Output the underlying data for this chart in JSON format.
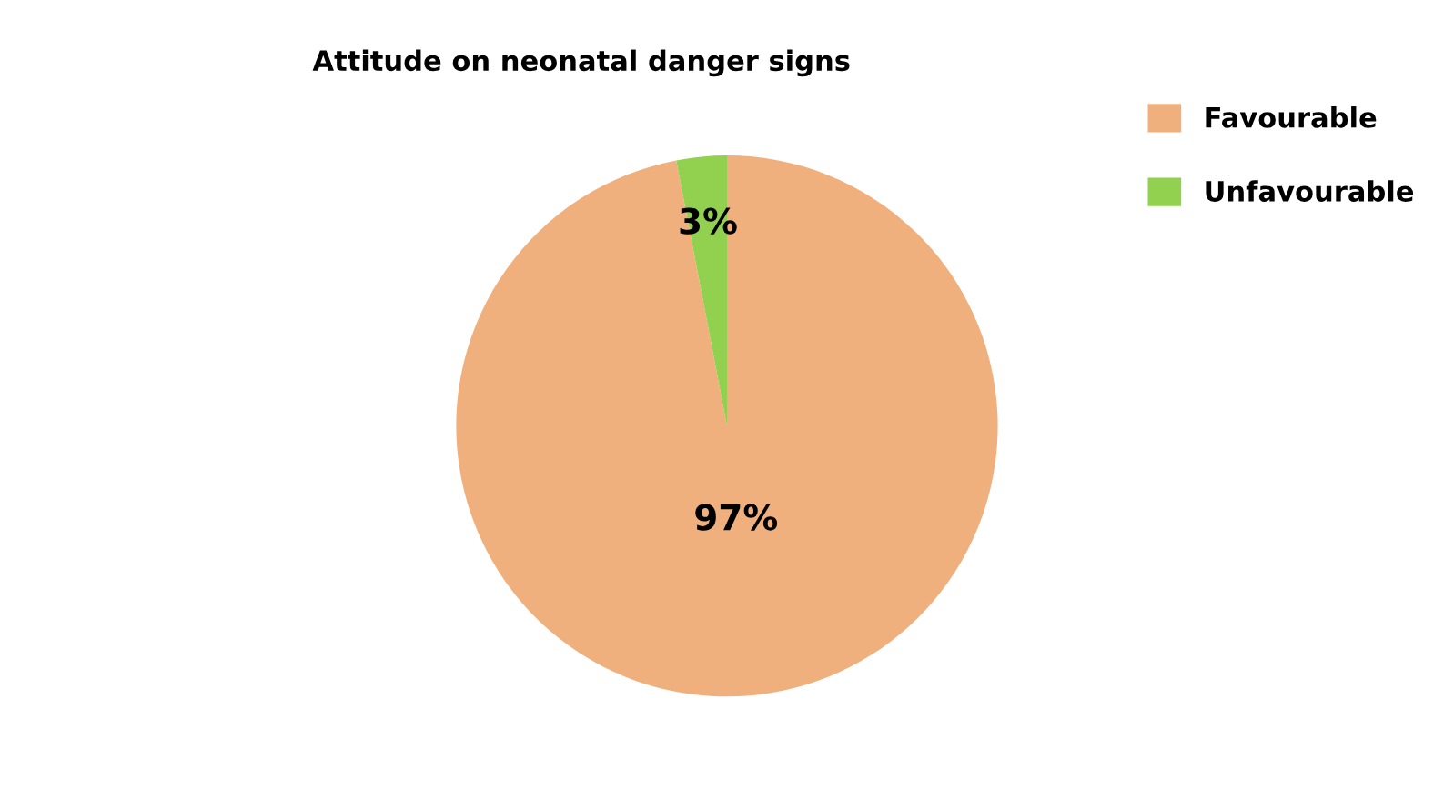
{
  "chart_data": {
    "type": "pie",
    "title": "Attitude on neonatal danger signs",
    "categories": [
      "Favourable",
      "Unfavourable"
    ],
    "values": [
      97,
      3
    ],
    "colors": [
      "#f0b07e",
      "#92d050"
    ],
    "value_labels": [
      "97%",
      "3%"
    ],
    "legend": "top right"
  }
}
